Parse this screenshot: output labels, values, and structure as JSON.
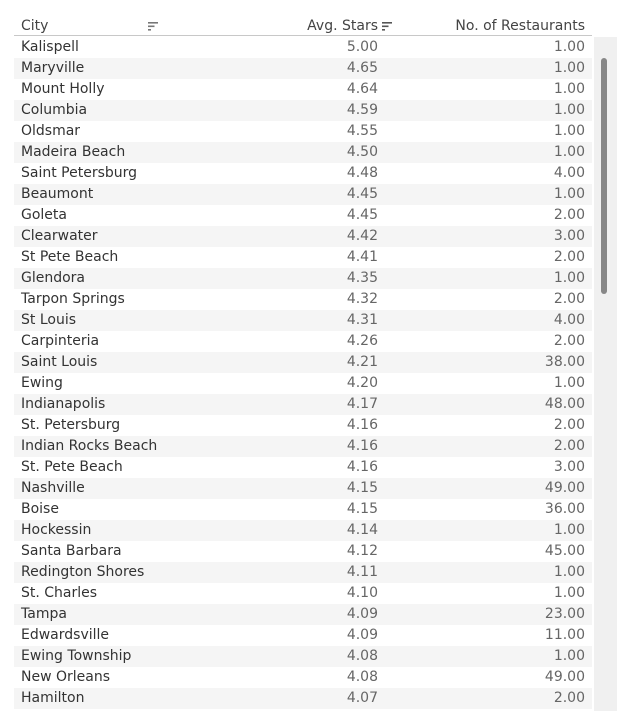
{
  "table": {
    "columns": {
      "city": "City",
      "avg_stars": "Avg. Stars",
      "restaurants": "No. of Restaurants"
    },
    "rows": [
      {
        "city": "Kalispell",
        "stars": "5.00",
        "count": "1.00"
      },
      {
        "city": "Maryville",
        "stars": "4.65",
        "count": "1.00"
      },
      {
        "city": "Mount Holly",
        "stars": "4.64",
        "count": "1.00"
      },
      {
        "city": "Columbia",
        "stars": "4.59",
        "count": "1.00"
      },
      {
        "city": "Oldsmar",
        "stars": "4.55",
        "count": "1.00"
      },
      {
        "city": "Madeira Beach",
        "stars": "4.50",
        "count": "1.00"
      },
      {
        "city": "Saint Petersburg",
        "stars": "4.48",
        "count": "4.00"
      },
      {
        "city": "Beaumont",
        "stars": "4.45",
        "count": "1.00"
      },
      {
        "city": "Goleta",
        "stars": "4.45",
        "count": "2.00"
      },
      {
        "city": "Clearwater",
        "stars": "4.42",
        "count": "3.00"
      },
      {
        "city": "St Pete Beach",
        "stars": "4.41",
        "count": "2.00"
      },
      {
        "city": "Glendora",
        "stars": "4.35",
        "count": "1.00"
      },
      {
        "city": "Tarpon Springs",
        "stars": "4.32",
        "count": "2.00"
      },
      {
        "city": "St Louis",
        "stars": "4.31",
        "count": "4.00"
      },
      {
        "city": "Carpinteria",
        "stars": "4.26",
        "count": "2.00"
      },
      {
        "city": "Saint Louis",
        "stars": "4.21",
        "count": "38.00"
      },
      {
        "city": "Ewing",
        "stars": "4.20",
        "count": "1.00"
      },
      {
        "city": "Indianapolis",
        "stars": "4.17",
        "count": "48.00"
      },
      {
        "city": "St. Petersburg",
        "stars": "4.16",
        "count": "2.00"
      },
      {
        "city": "Indian Rocks Beach",
        "stars": "4.16",
        "count": "2.00"
      },
      {
        "city": "St. Pete Beach",
        "stars": "4.16",
        "count": "3.00"
      },
      {
        "city": "Nashville",
        "stars": "4.15",
        "count": "49.00"
      },
      {
        "city": "Boise",
        "stars": "4.15",
        "count": "36.00"
      },
      {
        "city": "Hockessin",
        "stars": "4.14",
        "count": "1.00"
      },
      {
        "city": "Santa Barbara",
        "stars": "4.12",
        "count": "45.00"
      },
      {
        "city": "Redington Shores",
        "stars": "4.11",
        "count": "1.00"
      },
      {
        "city": "St. Charles",
        "stars": "4.10",
        "count": "1.00"
      },
      {
        "city": "Tampa",
        "stars": "4.09",
        "count": "23.00"
      },
      {
        "city": "Edwardsville",
        "stars": "4.09",
        "count": "11.00"
      },
      {
        "city": "Ewing Township",
        "stars": "4.08",
        "count": "1.00"
      },
      {
        "city": "New Orleans",
        "stars": "4.08",
        "count": "49.00"
      },
      {
        "city": "Hamilton",
        "stars": "4.07",
        "count": "2.00"
      },
      {
        "city": "",
        "stars": "",
        "count": ""
      }
    ]
  },
  "icons": {
    "city_sort": "sort-icon",
    "stars_sort": "sort-descending-icon"
  },
  "colors": {
    "row_shade": "#f5f5f5",
    "text_primary": "#333333",
    "text_secondary": "#666666",
    "scrollbar_thumb": "#878787"
  }
}
